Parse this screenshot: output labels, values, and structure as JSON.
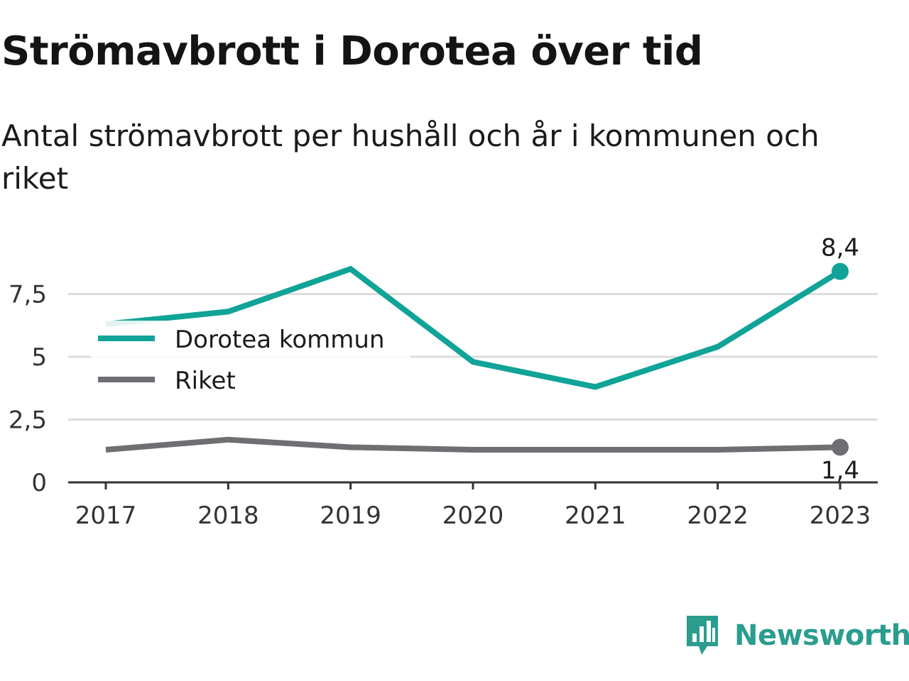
{
  "title": "Strömavbrott i Dorotea över tid",
  "subtitle": "Antal strömavbrott per hushåll och år i kommunen och riket",
  "brand": {
    "name": "Newsworthy",
    "color": "#2a9d8f",
    "icon": "newsworthy-chart-icon"
  },
  "colors": {
    "kommun": "#10a397",
    "riket": "#6e6e73",
    "grid": "#dcdcdc",
    "axis": "#333333"
  },
  "chart_data": {
    "type": "line",
    "x": [
      "2017",
      "2018",
      "2019",
      "2020",
      "2021",
      "2022",
      "2023"
    ],
    "series": [
      {
        "name": "Dorotea kommun",
        "values": [
          6.3,
          6.8,
          8.5,
          4.8,
          3.8,
          5.4,
          8.4
        ]
      },
      {
        "name": "Riket",
        "values": [
          1.3,
          1.7,
          1.4,
          1.3,
          1.3,
          1.3,
          1.4
        ]
      }
    ],
    "yticks": [
      0,
      2.5,
      5,
      7.5
    ],
    "ytick_labels": [
      "0",
      "2,5",
      "5",
      "7,5"
    ],
    "ylim": [
      0,
      9.5
    ],
    "end_labels": [
      "8,4",
      "1,4"
    ],
    "grid": true,
    "legend_position": "top-left"
  }
}
